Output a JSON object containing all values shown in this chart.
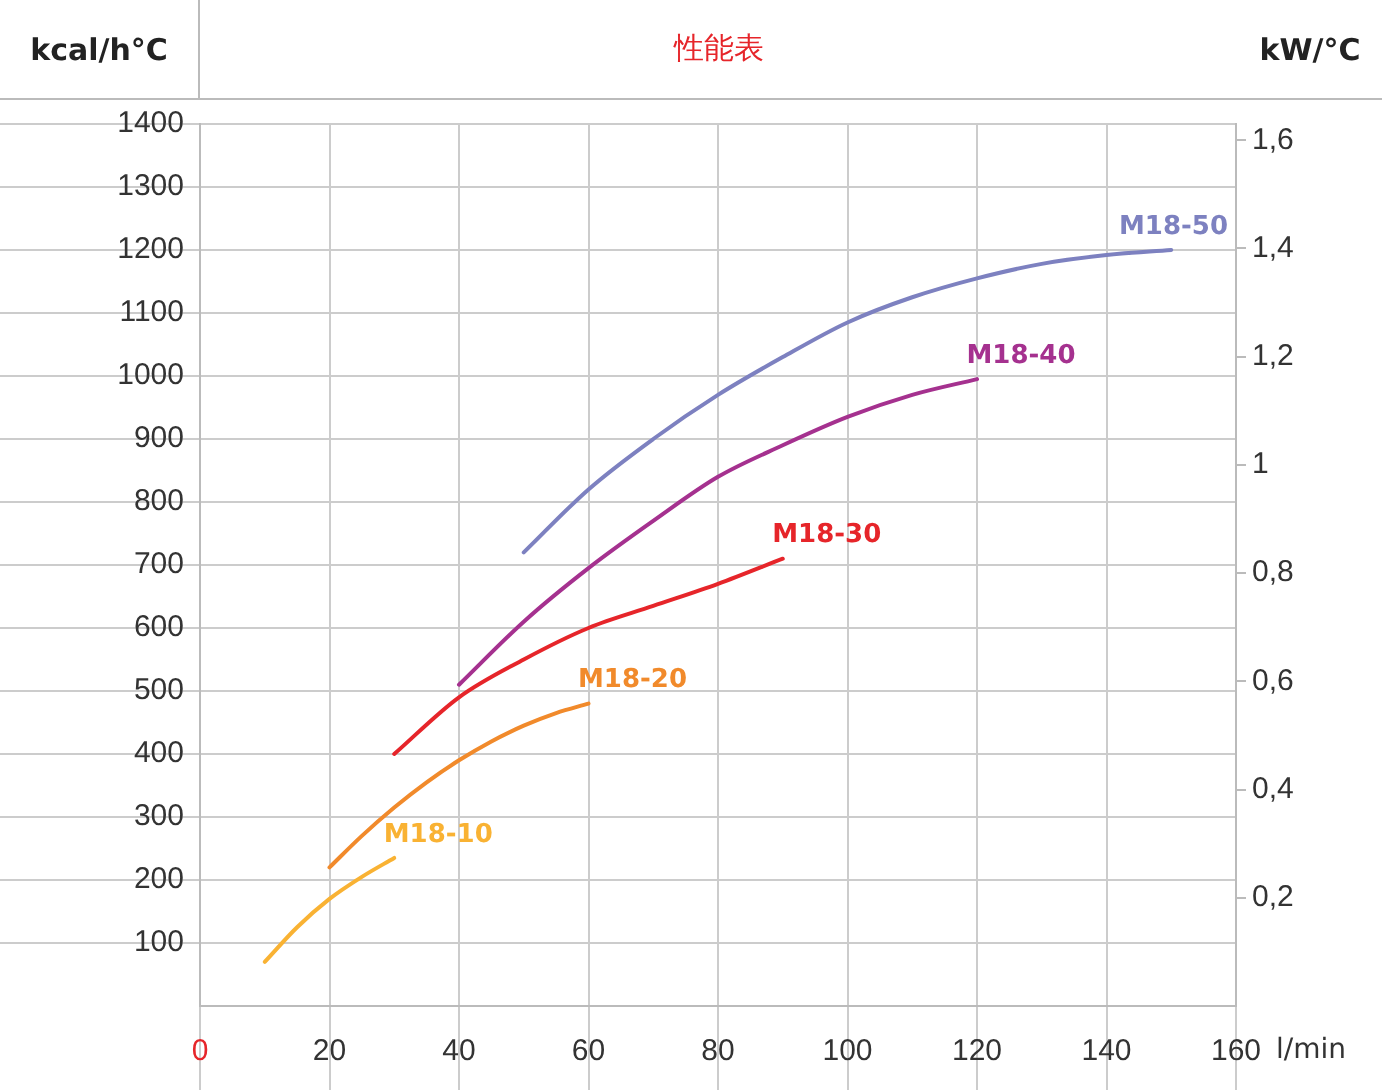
{
  "chart_data": {
    "type": "line",
    "title": "性能表",
    "ylabel": "kcal/h°C",
    "y2label": "kW/°C",
    "xlabel": "l/min",
    "xlim": [
      0,
      160
    ],
    "xticks": [
      0,
      20,
      40,
      60,
      80,
      100,
      120,
      140,
      160
    ],
    "ylim": [
      0,
      1400
    ],
    "yticks": [
      100,
      200,
      300,
      400,
      500,
      600,
      700,
      800,
      900,
      1000,
      1100,
      1200,
      1300,
      1400
    ],
    "y2lim": [
      0,
      1.63
    ],
    "y2ticks": [
      {
        "value": 0.2,
        "label": "0,2"
      },
      {
        "value": 0.4,
        "label": "0,4"
      },
      {
        "value": 0.6,
        "label": "0,6"
      },
      {
        "value": 0.8,
        "label": "0,8"
      },
      1,
      {
        "value": 1.2,
        "label": "1,2"
      },
      {
        "value": 1.4,
        "label": "1,4"
      },
      {
        "value": 1.6,
        "label": "1,6"
      }
    ],
    "grid": true,
    "legend": false,
    "marker": "none",
    "line_style": "solid",
    "series": [
      {
        "name": "M18-10",
        "color": "#f9b233",
        "x": [
          10,
          15,
          20,
          25,
          30
        ],
        "values": [
          70,
          125,
          170,
          205,
          235
        ]
      },
      {
        "name": "M18-20",
        "color": "#f18a2b",
        "x": [
          20,
          25,
          30,
          35,
          40,
          45,
          50,
          55,
          60
        ],
        "values": [
          220,
          270,
          315,
          355,
          390,
          420,
          445,
          465,
          480
        ]
      },
      {
        "name": "M18-30",
        "color": "#e6252a",
        "x": [
          30,
          40,
          50,
          60,
          70,
          80,
          90
        ],
        "values": [
          400,
          490,
          550,
          600,
          635,
          670,
          710
        ]
      },
      {
        "name": "M18-40",
        "color": "#a5318f",
        "x": [
          40,
          50,
          60,
          70,
          80,
          90,
          100,
          110,
          120
        ],
        "values": [
          510,
          610,
          695,
          770,
          840,
          890,
          935,
          970,
          995
        ]
      },
      {
        "name": "M18-50",
        "color": "#7d81c0",
        "x": [
          50,
          60,
          70,
          80,
          90,
          100,
          110,
          120,
          130,
          140,
          150
        ],
        "values": [
          720,
          820,
          900,
          970,
          1030,
          1085,
          1125,
          1155,
          1178,
          1192,
          1200
        ]
      }
    ]
  }
}
